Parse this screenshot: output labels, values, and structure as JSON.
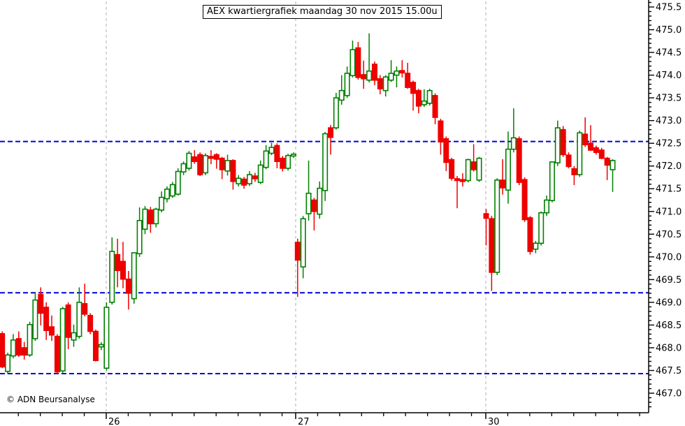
{
  "header": {
    "title": "AEX kwartiergrafiek maandag 30 nov 2015 15.00u"
  },
  "footer": {
    "copyright": "© ADN Beursanalyse"
  },
  "colors": {
    "up": "#008000",
    "down": "#ee0000",
    "level_line": "#0000d9",
    "day_grid": "#c9c9c9",
    "axis": "#000000",
    "background": "#ffffff"
  },
  "y_axis": {
    "tick_labels": [
      "475.5",
      "475.0",
      "474.5",
      "474.0",
      "473.5",
      "473.0",
      "472.5",
      "472.0",
      "471.5",
      "471.0",
      "470.5",
      "470.0",
      "469.5",
      "469.0",
      "468.5",
      "468.0",
      "467.5",
      "467.0"
    ],
    "major_step": 0.5,
    "minor_step": 0.1
  },
  "x_axis": {
    "day_labels": [
      "26",
      "27",
      "30"
    ]
  },
  "chart_data": {
    "type": "candlestick",
    "title": "AEX kwartiergrafiek maandag 30 nov 2015 15.00u",
    "xlabel": "",
    "ylabel": "",
    "ylim": [
      467.0,
      475.5
    ],
    "grid": "dashed-day-separators",
    "levels": [
      472.54,
      469.21,
      467.43
    ],
    "day_grid_x": [
      152,
      423,
      695
    ],
    "days": [
      {
        "label": "",
        "x0": 3.2,
        "candles": [
          [
            468.31,
            468.36,
            467.55,
            467.58
          ],
          [
            467.48,
            467.89,
            467.42,
            467.84
          ],
          [
            467.82,
            468.3,
            467.77,
            468.17
          ],
          [
            468.2,
            468.36,
            467.8,
            467.84
          ],
          [
            468.0,
            468.13,
            467.74,
            467.84
          ],
          [
            467.84,
            468.57,
            467.8,
            468.51
          ],
          [
            468.2,
            469.23,
            468.15,
            469.05
          ],
          [
            469.17,
            469.33,
            468.49,
            468.76
          ],
          [
            468.89,
            469.0,
            468.17,
            468.38
          ],
          [
            468.46,
            468.71,
            468.15,
            468.28
          ],
          [
            468.25,
            468.3,
            467.42,
            467.47
          ],
          [
            467.49,
            468.9,
            467.45,
            468.86
          ],
          [
            468.94,
            469.0,
            467.97,
            468.23
          ],
          [
            468.17,
            468.51,
            468.02,
            468.33
          ],
          [
            468.25,
            469.33,
            468.2,
            469.0
          ],
          [
            468.97,
            469.41,
            468.69,
            468.74
          ],
          [
            468.71,
            468.76,
            468.3,
            468.36
          ],
          [
            468.36,
            468.4,
            467.7,
            467.72
          ],
          [
            468.02,
            468.12,
            467.95,
            468.07
          ]
        ]
      },
      {
        "label": "26",
        "x0": 152.4,
        "candles": [
          [
            467.55,
            469.0,
            467.5,
            468.89
          ],
          [
            469.0,
            470.43,
            468.95,
            470.12
          ],
          [
            470.05,
            470.4,
            469.33,
            469.7
          ],
          [
            469.9,
            470.33,
            469.31,
            469.51
          ],
          [
            469.51,
            469.69,
            468.84,
            469.2
          ],
          [
            469.08,
            470.1,
            468.97,
            470.09
          ],
          [
            470.07,
            471.09,
            470.0,
            470.8
          ],
          [
            470.61,
            471.12,
            470.5,
            471.05
          ],
          [
            471.03,
            471.1,
            470.53,
            470.73
          ],
          [
            470.73,
            471.08,
            470.65,
            471.05
          ],
          [
            471.03,
            471.44,
            470.98,
            471.31
          ],
          [
            471.28,
            471.55,
            471.2,
            471.49
          ],
          [
            471.34,
            471.65,
            471.3,
            471.59
          ],
          [
            471.38,
            471.95,
            471.35,
            471.88
          ],
          [
            471.87,
            472.1,
            471.8,
            472.05
          ],
          [
            471.95,
            472.33,
            471.9,
            472.28
          ],
          [
            472.2,
            472.35,
            472.05,
            472.1
          ],
          [
            472.25,
            472.3,
            471.78,
            471.81
          ],
          [
            471.85,
            472.28,
            471.8,
            472.23
          ],
          [
            472.21,
            472.35,
            472.04,
            472.17
          ],
          [
            472.25,
            472.28,
            471.94,
            472.15
          ],
          [
            472.17,
            472.2,
            471.71,
            471.92
          ],
          [
            471.89,
            472.25,
            471.79,
            472.12
          ],
          [
            472.12,
            472.15,
            471.48,
            471.66
          ],
          [
            471.61,
            471.8,
            471.55,
            471.73
          ],
          [
            471.71,
            471.76,
            471.5,
            471.58
          ],
          [
            471.61,
            471.89,
            471.56,
            471.81
          ],
          [
            471.78,
            471.85,
            471.65,
            471.72
          ],
          [
            471.64,
            472.12,
            471.6,
            472.02
          ],
          [
            471.97,
            472.46,
            471.93,
            472.33
          ],
          [
            472.28,
            472.51,
            472.24,
            472.41
          ],
          [
            472.45,
            472.5,
            471.95,
            472.1
          ],
          [
            472.17,
            472.22,
            471.88,
            471.95
          ],
          [
            471.95,
            472.27,
            471.9,
            472.23
          ],
          [
            472.22,
            472.3,
            472.18,
            472.26
          ]
        ]
      },
      {
        "label": "27",
        "x0": 425.8,
        "candles": [
          [
            470.32,
            470.4,
            469.12,
            469.93
          ],
          [
            469.78,
            470.9,
            469.53,
            470.84
          ],
          [
            470.95,
            472.12,
            470.8,
            471.4
          ],
          [
            471.25,
            471.3,
            470.58,
            471.0
          ],
          [
            470.94,
            471.66,
            470.84,
            471.51
          ],
          [
            471.46,
            472.75,
            471.23,
            472.71
          ],
          [
            472.84,
            472.9,
            472.25,
            472.63
          ],
          [
            472.84,
            473.61,
            472.8,
            473.5
          ],
          [
            473.45,
            474.0,
            473.35,
            473.66
          ],
          [
            473.55,
            474.19,
            473.5,
            474.04
          ],
          [
            473.99,
            474.76,
            473.95,
            474.56
          ],
          [
            474.6,
            474.73,
            473.9,
            473.95
          ],
          [
            474.01,
            474.32,
            473.7,
            473.92
          ],
          [
            473.89,
            474.92,
            473.84,
            474.09
          ],
          [
            474.24,
            474.3,
            473.78,
            473.89
          ],
          [
            473.92,
            474.0,
            473.58,
            473.7
          ],
          [
            473.66,
            474.0,
            473.53,
            473.96
          ],
          [
            473.89,
            474.33,
            473.85,
            474.04
          ],
          [
            474.0,
            474.19,
            473.73,
            474.09
          ],
          [
            474.1,
            474.33,
            473.95,
            474.05
          ],
          [
            474.04,
            474.27,
            473.7,
            473.73
          ],
          [
            473.84,
            473.88,
            473.22,
            473.6
          ],
          [
            473.66,
            473.7,
            473.16,
            473.32
          ],
          [
            473.35,
            473.69,
            473.3,
            473.43
          ],
          [
            473.38,
            473.7,
            473.33,
            473.66
          ],
          [
            473.55,
            473.6,
            472.92,
            473.07
          ],
          [
            472.99,
            473.04,
            472.25,
            472.53
          ],
          [
            472.6,
            472.65,
            471.89,
            472.08
          ],
          [
            472.14,
            472.18,
            471.68,
            471.73
          ],
          [
            471.72,
            471.78,
            471.07,
            471.68
          ],
          [
            471.7,
            471.84,
            471.55,
            471.66
          ],
          [
            471.68,
            472.16,
            471.64,
            472.14
          ],
          [
            472.09,
            472.48,
            471.88,
            471.92
          ],
          [
            471.69,
            472.2,
            471.65,
            472.17
          ]
        ]
      },
      {
        "label": "30",
        "x0": 695.5,
        "candles": [
          [
            470.95,
            471.05,
            470.25,
            470.85
          ],
          [
            470.84,
            470.9,
            469.25,
            469.66
          ],
          [
            469.66,
            471.73,
            469.6,
            471.69
          ],
          [
            471.69,
            472.15,
            471.37,
            471.52
          ],
          [
            471.47,
            472.76,
            471.17,
            472.37
          ],
          [
            472.37,
            473.27,
            472.3,
            472.62
          ],
          [
            472.6,
            472.65,
            471.58,
            471.64
          ],
          [
            471.7,
            471.75,
            470.77,
            470.82
          ],
          [
            470.86,
            470.9,
            470.05,
            470.12
          ],
          [
            470.17,
            470.35,
            470.08,
            470.3
          ],
          [
            470.3,
            471.0,
            470.25,
            470.97
          ],
          [
            470.97,
            471.35,
            470.9,
            471.25
          ],
          [
            471.24,
            472.1,
            471.2,
            472.09
          ],
          [
            472.07,
            473.0,
            472.0,
            472.84
          ],
          [
            472.8,
            472.88,
            472.2,
            472.25
          ],
          [
            472.24,
            472.3,
            471.95,
            471.99
          ],
          [
            471.94,
            472.0,
            471.58,
            471.81
          ],
          [
            471.81,
            472.78,
            471.76,
            472.73
          ],
          [
            472.7,
            473.07,
            472.42,
            472.47
          ],
          [
            472.5,
            472.9,
            472.33,
            472.35
          ],
          [
            472.4,
            472.45,
            472.25,
            472.3
          ],
          [
            472.35,
            472.4,
            472.15,
            472.17
          ],
          [
            472.17,
            472.2,
            471.69,
            472.02
          ],
          [
            471.92,
            472.15,
            471.43,
            472.12
          ]
        ]
      }
    ]
  }
}
